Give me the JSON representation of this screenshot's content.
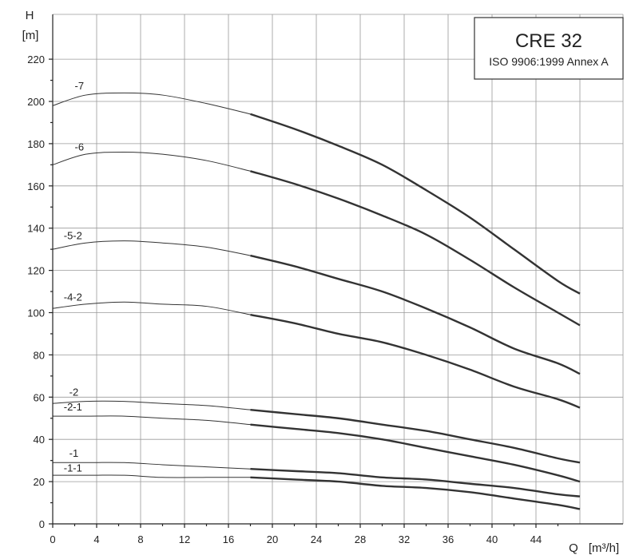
{
  "chart_data": {
    "type": "line",
    "title": "CRE 32",
    "subtitle": "ISO 9906:1999 Annex A",
    "ylabel": "H",
    "yunit": "[m]",
    "xlabel": "Q",
    "xunit": "[m³/h]",
    "xlim": [
      0,
      48
    ],
    "ylim": [
      0,
      230
    ],
    "xticks": [
      0,
      4,
      8,
      12,
      16,
      20,
      24,
      28,
      32,
      36,
      40,
      44
    ],
    "xtick_labels": [
      "0",
      "4",
      "8",
      "12",
      "16",
      "20",
      "24",
      "28",
      "32",
      "36",
      "40",
      "44"
    ],
    "yticks": [
      0,
      20,
      40,
      60,
      80,
      100,
      120,
      140,
      160,
      180,
      200,
      220
    ],
    "ytick_labels": [
      "0",
      "20",
      "40",
      "60",
      "80",
      "100",
      "120",
      "140",
      "160",
      "180",
      "200",
      "220"
    ],
    "end_x": 48,
    "thick_from_x": 18,
    "grid": true,
    "legend_position": "top-right",
    "series": [
      {
        "name": "-7",
        "label_x": 2,
        "label_y": 205,
        "x": [
          0,
          3,
          6.5,
          10,
          14,
          18,
          22,
          26,
          30,
          34,
          38,
          42,
          46,
          48
        ],
        "y": [
          198,
          203,
          204,
          203,
          199,
          194,
          187,
          179,
          170,
          158,
          145,
          130,
          115,
          109
        ]
      },
      {
        "name": "-6",
        "label_x": 2,
        "label_y": 176,
        "x": [
          0,
          3,
          6.5,
          10,
          14,
          18,
          22,
          26,
          30,
          34,
          38,
          42,
          46,
          48
        ],
        "y": [
          170,
          175,
          176,
          175,
          172,
          167,
          161,
          154,
          146,
          137,
          125,
          112,
          100,
          94
        ]
      },
      {
        "name": "-5-2",
        "label_x": 1,
        "label_y": 134,
        "x": [
          0,
          3,
          6.5,
          10,
          14,
          18,
          22,
          26,
          30,
          34,
          38,
          42,
          46,
          48
        ],
        "y": [
          130,
          133,
          134,
          133,
          131,
          127,
          122,
          116,
          110,
          102,
          93,
          83,
          76,
          71
        ]
      },
      {
        "name": "-4-2",
        "label_x": 1,
        "label_y": 105,
        "x": [
          0,
          3,
          6.5,
          10,
          14,
          18,
          22,
          26,
          30,
          34,
          38,
          42,
          46,
          48
        ],
        "y": [
          102,
          104,
          105,
          104,
          103,
          99,
          95,
          90,
          86,
          80,
          73,
          65,
          59,
          55
        ]
      },
      {
        "name": "-2",
        "label_x": 1.5,
        "label_y": 60,
        "x": [
          0,
          3,
          6.5,
          10,
          14,
          18,
          22,
          26,
          30,
          34,
          38,
          42,
          46,
          48
        ],
        "y": [
          57,
          58,
          58,
          57,
          56,
          54,
          52,
          50,
          47,
          44,
          40,
          36,
          31,
          29
        ]
      },
      {
        "name": "-2-1",
        "label_x": 1,
        "label_y": 53,
        "x": [
          0,
          3,
          6.5,
          10,
          14,
          18,
          22,
          26,
          30,
          34,
          38,
          42,
          46,
          48
        ],
        "y": [
          51,
          51,
          51,
          50,
          49,
          47,
          45,
          43,
          40,
          36,
          32,
          28,
          23,
          20
        ]
      },
      {
        "name": "-1",
        "label_x": 1.5,
        "label_y": 31,
        "x": [
          0,
          3,
          6.5,
          10,
          14,
          18,
          22,
          26,
          30,
          34,
          38,
          42,
          46,
          48
        ],
        "y": [
          29,
          29,
          29,
          28,
          27,
          26,
          25,
          24,
          22,
          21,
          19,
          17,
          14,
          13
        ]
      },
      {
        "name": "-1-1",
        "label_x": 1,
        "label_y": 24,
        "x": [
          0,
          3,
          6.5,
          10,
          14,
          18,
          22,
          26,
          30,
          34,
          38,
          42,
          46,
          48
        ],
        "y": [
          23,
          23,
          23,
          22,
          22,
          22,
          21,
          20,
          18,
          17,
          15,
          12,
          9,
          7
        ]
      }
    ]
  }
}
